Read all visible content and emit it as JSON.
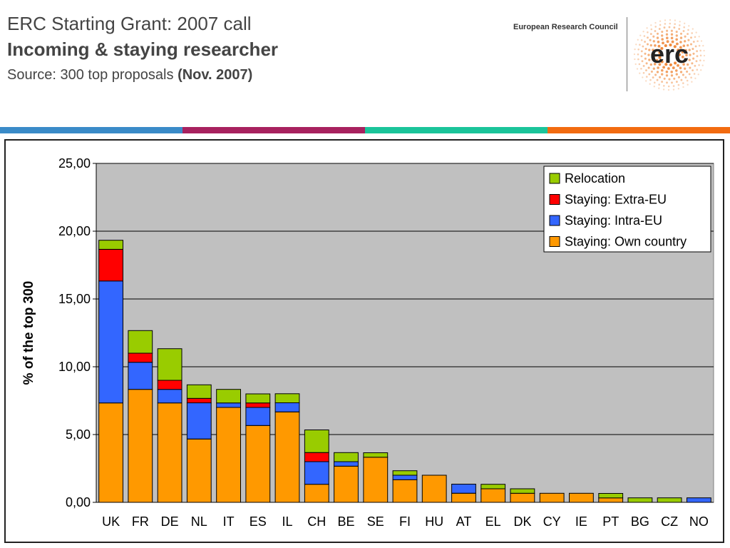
{
  "header": {
    "title_line1": "ERC Starting Grant: 2007 call",
    "title_line2": "Incoming & staying researcher",
    "source_prefix": "Source: 300 top proposals",
    "source_bold": "(Nov. 2007)",
    "org_name": "European Research Council",
    "logo_text": "erc"
  },
  "colors": {
    "stripe_blue": "#3A8BC8",
    "stripe_magenta": "#A8225F",
    "stripe_teal": "#1BC49A",
    "stripe_orange": "#F26B10",
    "logo_dots": "#F08A3C"
  },
  "chart_data": {
    "type": "bar",
    "stacked": true,
    "title": "",
    "xlabel": "",
    "ylabel": "% of the top 300",
    "ylim": [
      0,
      25
    ],
    "yticks": [
      "0,00",
      "5,00",
      "10,00",
      "15,00",
      "20,00",
      "25,00"
    ],
    "grid": true,
    "legend_position": "top-right",
    "categories": [
      "UK",
      "FR",
      "DE",
      "NL",
      "IT",
      "ES",
      "IL",
      "CH",
      "BE",
      "SE",
      "FI",
      "HU",
      "AT",
      "EL",
      "DK",
      "CY",
      "IE",
      "PT",
      "BG",
      "CZ",
      "NO"
    ],
    "series": [
      {
        "name": "Staying: Own country",
        "color": "#FF9900",
        "values": [
          7.33,
          8.33,
          7.33,
          4.67,
          7.0,
          5.67,
          6.67,
          1.33,
          2.67,
          3.33,
          1.67,
          2.0,
          0.67,
          1.0,
          0.67,
          0.67,
          0.67,
          0.33,
          0.0,
          0.0,
          0.0
        ]
      },
      {
        "name": "Staying: Intra-EU",
        "color": "#3366FF",
        "values": [
          9.0,
          2.0,
          1.0,
          2.67,
          0.33,
          1.33,
          0.67,
          1.67,
          0.33,
          0.0,
          0.33,
          0.0,
          0.67,
          0.0,
          0.0,
          0.0,
          0.0,
          0.0,
          0.0,
          0.0,
          0.33
        ]
      },
      {
        "name": "Staying: Extra-EU",
        "color": "#FF0000",
        "values": [
          2.33,
          0.67,
          0.67,
          0.33,
          0.0,
          0.33,
          0.0,
          0.67,
          0.0,
          0.0,
          0.0,
          0.0,
          0.0,
          0.0,
          0.0,
          0.0,
          0.0,
          0.0,
          0.0,
          0.0,
          0.0
        ]
      },
      {
        "name": "Relocation",
        "color": "#99CC00",
        "values": [
          0.67,
          1.67,
          2.33,
          1.0,
          1.0,
          0.67,
          0.67,
          1.67,
          0.67,
          0.33,
          0.33,
          0.0,
          0.0,
          0.33,
          0.33,
          0.0,
          0.0,
          0.33,
          0.33,
          0.33,
          0.0
        ]
      }
    ],
    "legend_order": [
      "Relocation",
      "Staying: Extra-EU",
      "Staying: Intra-EU",
      "Staying: Own country"
    ]
  }
}
